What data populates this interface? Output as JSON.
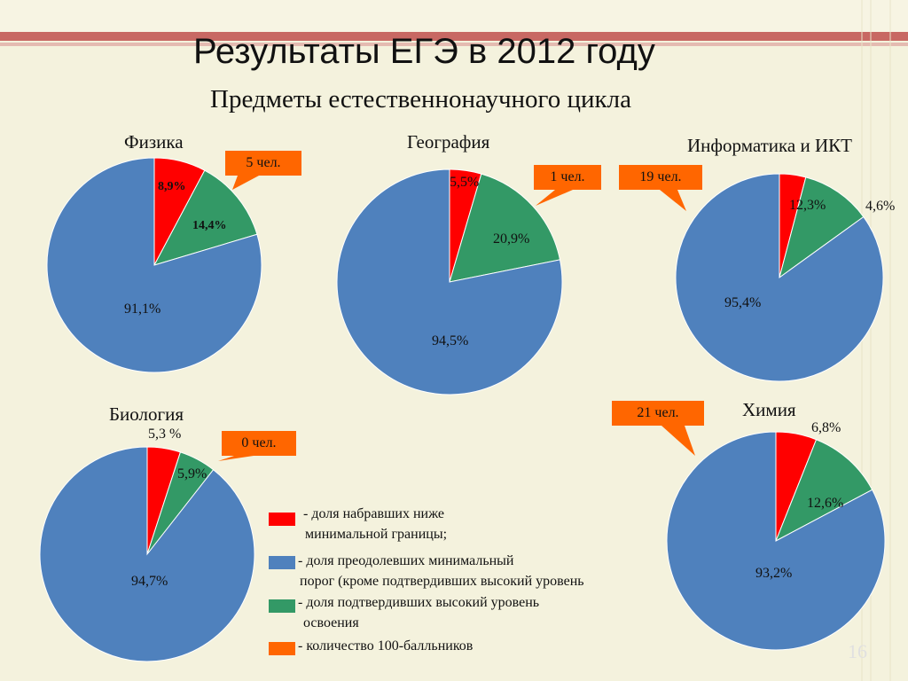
{
  "title": "Результаты ЕГЭ в 2012 году",
  "subtitle": "Предметы естественнонаучного цикла",
  "colors": {
    "red": "#ff0000",
    "blue": "#4f81bd",
    "green": "#339966",
    "orange": "#ff6600"
  },
  "chart_data": [
    {
      "type": "pie",
      "title": "Физика",
      "series": [
        {
          "values": [
            8.9,
            14.4,
            91.1
          ]
        }
      ],
      "labels": [
        "8,9%",
        "14,4%",
        "91,1%"
      ],
      "callout": "5 чел."
    },
    {
      "type": "pie",
      "title": "География",
      "series": [
        {
          "values": [
            5.5,
            20.9,
            94.5
          ]
        }
      ],
      "labels": [
        "5,5%",
        "20,9%",
        "94,5%"
      ],
      "callout": "1 чел."
    },
    {
      "type": "pie",
      "title": "Информатика и ИКТ",
      "series": [
        {
          "values": [
            4.6,
            12.3,
            95.4
          ]
        }
      ],
      "labels": [
        "4,6%",
        "12,3%",
        "95,4%"
      ],
      "callout": "19 чел."
    },
    {
      "type": "pie",
      "title": "Биология",
      "series": [
        {
          "values": [
            5.3,
            5.9,
            94.7
          ]
        }
      ],
      "labels": [
        "5,3 %",
        "5,9%",
        "94,7%"
      ],
      "callout": "0 чел."
    },
    {
      "type": "pie",
      "title": "Химия",
      "series": [
        {
          "values": [
            6.8,
            12.6,
            93.2
          ]
        }
      ],
      "labels": [
        "6,8%",
        "12,6%",
        "93,2%"
      ],
      "callout": "21 чел."
    }
  ],
  "legend": {
    "red_line1": "- доля набравших ниже",
    "red_line2": "минимальной границы;",
    "blue_line1": "- доля преодолевших минимальный",
    "blue_line2": "порог (кроме  подтвердивших высокий уровень",
    "green_line1": "- доля  подтвердивших высокий уровень",
    "green_line2": "освоения",
    "orange_line1": "- количество 100-балльников"
  },
  "page_number": "16"
}
